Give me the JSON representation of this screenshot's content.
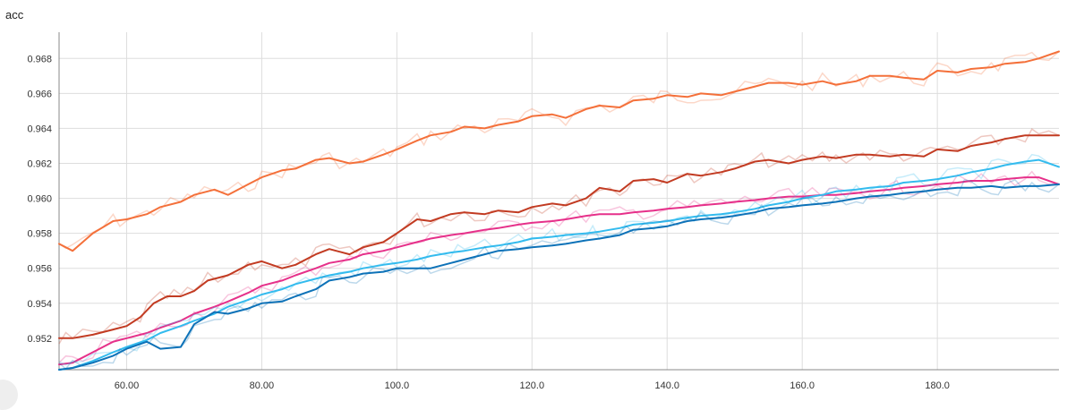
{
  "chart_data": {
    "type": "line",
    "title": "acc",
    "xlabel": "",
    "ylabel": "",
    "xlim": [
      50,
      198
    ],
    "ylim": [
      0.9502,
      0.9695
    ],
    "x_ticks": [
      60,
      80,
      100,
      120,
      140,
      160,
      180
    ],
    "x_tick_labels": [
      "60.00",
      "80.00",
      "100.0",
      "120.0",
      "140.0",
      "160.0",
      "180.0"
    ],
    "y_ticks": [
      0.952,
      0.954,
      0.956,
      0.958,
      0.96,
      0.962,
      0.964,
      0.966,
      0.968
    ],
    "y_tick_labels": [
      "0.952",
      "0.954",
      "0.956",
      "0.958",
      "0.960",
      "0.962",
      "0.964",
      "0.966",
      "0.968"
    ],
    "grid": true,
    "legend": false,
    "series": [
      {
        "color": "#f4703a",
        "x": [
          50,
          52,
          55,
          58,
          60,
          63,
          65,
          68,
          70,
          73,
          75,
          78,
          80,
          83,
          85,
          88,
          90,
          93,
          95,
          98,
          100,
          103,
          105,
          108,
          110,
          113,
          115,
          118,
          120,
          123,
          125,
          128,
          130,
          133,
          135,
          138,
          140,
          143,
          145,
          148,
          150,
          153,
          155,
          158,
          160,
          163,
          165,
          168,
          170,
          173,
          175,
          178,
          180,
          183,
          185,
          188,
          190,
          193,
          195,
          198
        ],
        "y": [
          0.9574,
          0.957,
          0.958,
          0.9587,
          0.9588,
          0.9591,
          0.9595,
          0.9598,
          0.9602,
          0.9605,
          0.9602,
          0.9608,
          0.9612,
          0.9616,
          0.9617,
          0.9622,
          0.9623,
          0.962,
          0.9621,
          0.9625,
          0.9628,
          0.9633,
          0.9636,
          0.9638,
          0.9641,
          0.964,
          0.9642,
          0.9644,
          0.9647,
          0.9648,
          0.9646,
          0.9651,
          0.9653,
          0.9652,
          0.9656,
          0.9657,
          0.9659,
          0.9658,
          0.966,
          0.9659,
          0.9661,
          0.9664,
          0.9666,
          0.9666,
          0.9665,
          0.9667,
          0.9665,
          0.9667,
          0.967,
          0.967,
          0.9669,
          0.9668,
          0.9673,
          0.9672,
          0.9674,
          0.9675,
          0.9677,
          0.9678,
          0.968,
          0.9684
        ]
      },
      {
        "color": "#c23b22",
        "x": [
          50,
          52,
          55,
          58,
          60,
          62,
          64,
          66,
          68,
          70,
          72,
          75,
          78,
          80,
          83,
          85,
          88,
          90,
          93,
          95,
          98,
          100,
          103,
          105,
          108,
          110,
          113,
          115,
          118,
          120,
          123,
          125,
          128,
          130,
          133,
          135,
          138,
          140,
          143,
          145,
          148,
          150,
          153,
          155,
          158,
          160,
          163,
          165,
          168,
          170,
          173,
          175,
          178,
          180,
          183,
          185,
          188,
          190,
          193,
          195,
          198
        ],
        "y": [
          0.952,
          0.952,
          0.9522,
          0.9525,
          0.9527,
          0.9532,
          0.954,
          0.9544,
          0.9544,
          0.9547,
          0.9553,
          0.9556,
          0.9562,
          0.9564,
          0.956,
          0.9562,
          0.9568,
          0.9571,
          0.9568,
          0.9572,
          0.9575,
          0.958,
          0.9588,
          0.9587,
          0.9591,
          0.9592,
          0.9591,
          0.9593,
          0.9592,
          0.9595,
          0.9597,
          0.9596,
          0.96,
          0.9606,
          0.9604,
          0.961,
          0.9611,
          0.9609,
          0.9614,
          0.9613,
          0.9615,
          0.9617,
          0.9621,
          0.9622,
          0.962,
          0.9622,
          0.9624,
          0.9623,
          0.9625,
          0.9625,
          0.9624,
          0.9625,
          0.9624,
          0.9628,
          0.9627,
          0.963,
          0.9632,
          0.9634,
          0.9636,
          0.9636,
          0.9636
        ]
      },
      {
        "color": "#e6308a",
        "x": [
          50,
          52,
          55,
          58,
          60,
          63,
          65,
          68,
          70,
          73,
          75,
          78,
          80,
          83,
          85,
          88,
          90,
          93,
          95,
          98,
          100,
          103,
          105,
          108,
          110,
          113,
          115,
          118,
          120,
          123,
          125,
          128,
          130,
          133,
          135,
          138,
          140,
          143,
          145,
          148,
          150,
          153,
          155,
          158,
          160,
          163,
          165,
          168,
          170,
          173,
          175,
          178,
          180,
          183,
          185,
          188,
          190,
          193,
          195,
          198
        ],
        "y": [
          0.9505,
          0.9506,
          0.9512,
          0.9518,
          0.952,
          0.9523,
          0.9526,
          0.953,
          0.9534,
          0.9538,
          0.9541,
          0.9546,
          0.955,
          0.9553,
          0.9556,
          0.956,
          0.9563,
          0.9565,
          0.9568,
          0.957,
          0.9572,
          0.9575,
          0.9577,
          0.9579,
          0.958,
          0.9582,
          0.9583,
          0.9585,
          0.9586,
          0.9587,
          0.9588,
          0.959,
          0.9591,
          0.9591,
          0.9592,
          0.9593,
          0.9594,
          0.9595,
          0.9596,
          0.9597,
          0.9598,
          0.9599,
          0.96,
          0.9601,
          0.9601,
          0.9602,
          0.9602,
          0.9603,
          0.9604,
          0.9605,
          0.9606,
          0.9607,
          0.9608,
          0.9609,
          0.961,
          0.961,
          0.9611,
          0.9612,
          0.9612,
          0.9608
        ]
      },
      {
        "color": "#33bbee",
        "x": [
          50,
          52,
          55,
          58,
          60,
          63,
          65,
          68,
          70,
          73,
          75,
          78,
          80,
          83,
          85,
          88,
          90,
          93,
          95,
          98,
          100,
          103,
          105,
          108,
          110,
          113,
          115,
          118,
          120,
          123,
          125,
          128,
          130,
          133,
          135,
          138,
          140,
          143,
          145,
          148,
          150,
          153,
          155,
          158,
          160,
          163,
          165,
          168,
          170,
          173,
          175,
          178,
          180,
          183,
          185,
          188,
          190,
          193,
          195,
          198
        ],
        "y": [
          0.9502,
          0.9503,
          0.9507,
          0.9512,
          0.9515,
          0.9519,
          0.9523,
          0.9527,
          0.953,
          0.9534,
          0.9538,
          0.9542,
          0.9545,
          0.9548,
          0.9551,
          0.9554,
          0.9556,
          0.9558,
          0.956,
          0.9562,
          0.9563,
          0.9565,
          0.9567,
          0.9569,
          0.957,
          0.9572,
          0.9573,
          0.9575,
          0.9577,
          0.9578,
          0.9579,
          0.958,
          0.9581,
          0.9583,
          0.9585,
          0.9586,
          0.9587,
          0.9589,
          0.959,
          0.9591,
          0.9592,
          0.9594,
          0.9596,
          0.9598,
          0.96,
          0.9602,
          0.9604,
          0.9605,
          0.9606,
          0.9607,
          0.9609,
          0.961,
          0.9611,
          0.9613,
          0.9615,
          0.9617,
          0.9619,
          0.9621,
          0.9622,
          0.9618
        ]
      },
      {
        "color": "#0d72b8",
        "x": [
          50,
          52,
          55,
          58,
          60,
          63,
          65,
          68,
          70,
          73,
          75,
          78,
          80,
          83,
          85,
          88,
          90,
          93,
          95,
          98,
          100,
          103,
          105,
          108,
          110,
          113,
          115,
          118,
          120,
          123,
          125,
          128,
          130,
          133,
          135,
          138,
          140,
          143,
          145,
          148,
          150,
          153,
          155,
          158,
          160,
          163,
          165,
          168,
          170,
          173,
          175,
          178,
          180,
          183,
          185,
          188,
          190,
          193,
          195,
          198
        ],
        "y": [
          0.9502,
          0.9503,
          0.9506,
          0.951,
          0.9514,
          0.9518,
          0.9514,
          0.9515,
          0.9528,
          0.9535,
          0.9534,
          0.9537,
          0.954,
          0.9541,
          0.9544,
          0.9548,
          0.9553,
          0.9555,
          0.9557,
          0.9558,
          0.956,
          0.956,
          0.956,
          0.9563,
          0.9565,
          0.9568,
          0.957,
          0.9571,
          0.9572,
          0.9573,
          0.9574,
          0.9576,
          0.9577,
          0.9579,
          0.9582,
          0.9583,
          0.9584,
          0.9587,
          0.9588,
          0.9589,
          0.959,
          0.9592,
          0.9594,
          0.9595,
          0.9596,
          0.9597,
          0.9598,
          0.96,
          0.9601,
          0.9602,
          0.9603,
          0.9604,
          0.9605,
          0.9606,
          0.9606,
          0.9607,
          0.9606,
          0.9607,
          0.9607,
          0.9608
        ]
      }
    ]
  }
}
